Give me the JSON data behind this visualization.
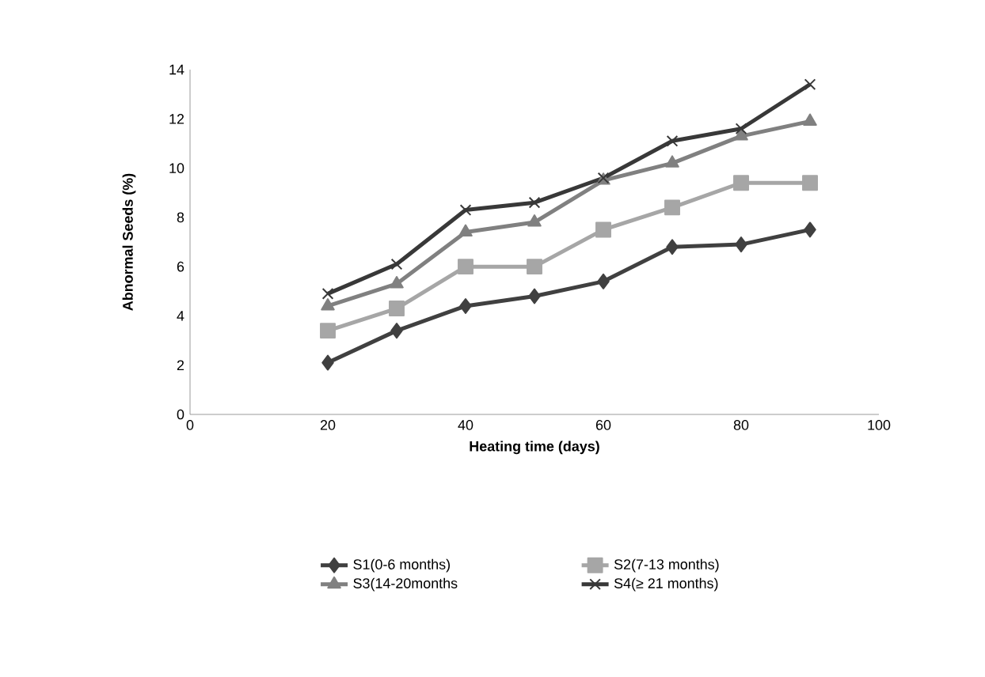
{
  "chart_data": {
    "type": "line",
    "xlabel": "Heating time (days)",
    "ylabel": "Abnormal Seeds (%)",
    "x": [
      20,
      30,
      40,
      50,
      60,
      70,
      80,
      90
    ],
    "series": [
      {
        "name": "S1(0-6 months)",
        "color": "#404040",
        "marker": "diamond",
        "values": [
          2.1,
          3.4,
          4.4,
          4.8,
          5.4,
          6.8,
          6.9,
          7.5
        ]
      },
      {
        "name": "S2(7-13 months)",
        "color": "#a6a6a6",
        "marker": "square",
        "values": [
          3.4,
          4.3,
          6.0,
          6.0,
          7.5,
          8.4,
          9.4,
          9.4
        ]
      },
      {
        "name": "S3(14-20months",
        "color": "#808080",
        "marker": "triangle",
        "values": [
          4.4,
          5.3,
          7.4,
          7.8,
          9.5,
          10.2,
          11.3,
          11.9
        ]
      },
      {
        "name": "S4(≥ 21 months)",
        "color": "#383838",
        "marker": "cross",
        "values": [
          4.9,
          6.1,
          8.3,
          8.6,
          9.6,
          11.1,
          11.6,
          13.4
        ]
      }
    ],
    "xlim": [
      0,
      100
    ],
    "xticks": [
      0,
      20,
      40,
      60,
      80,
      100
    ],
    "ylim": [
      0,
      14
    ],
    "yticks": [
      0,
      2,
      4,
      6,
      8,
      10,
      12,
      14
    ],
    "grid": false,
    "legend": "bottom",
    "line_style": "solid"
  }
}
